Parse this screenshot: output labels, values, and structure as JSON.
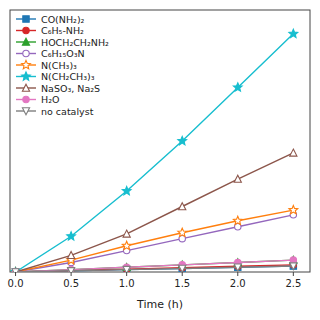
{
  "chart_data": {
    "type": "line",
    "xlabel": "Time (h)",
    "x": [
      0,
      0.5,
      1.0,
      1.5,
      2.0,
      2.5
    ],
    "xlim": [
      -0.05,
      2.65
    ],
    "ylim": [
      0,
      220
    ],
    "xticks": [
      {
        "value": 0,
        "label": "0.0"
      },
      0.5,
      {
        "value": 1.0,
        "label": "1.0"
      },
      1.5,
      {
        "value": 2.0,
        "label": "2.0"
      },
      2.5
    ],
    "tick_labels": "x",
    "legend": "upper-left",
    "series": [
      {
        "name": "CO(NH₂)₂",
        "marker": "square",
        "line_style": "solid",
        "values": [
          0,
          1,
          2,
          3,
          4,
          5
        ]
      },
      {
        "name": "C₆H₅-NH₂",
        "marker": "circle",
        "line_style": "solid",
        "values": [
          0,
          1.2,
          2.4,
          3.6,
          4.8,
          6
        ]
      },
      {
        "name": "HOCH₂CH₂NH₂",
        "marker": "triangle",
        "line_style": "solid",
        "values": [
          0,
          2,
          4,
          6,
          8,
          10
        ]
      },
      {
        "name": "C₆H₁₅O₃N",
        "marker": "circle-open",
        "line_style": "solid",
        "values": [
          0,
          8,
          18,
          28,
          38,
          48
        ]
      },
      {
        "name": "N(CH₃)₃",
        "marker": "star-open",
        "line_style": "solid",
        "values": [
          0,
          10,
          22,
          33,
          43,
          52
        ]
      },
      {
        "name": "N(CH₂CH₃)₃",
        "marker": "star",
        "line_style": "solid",
        "values": [
          0,
          30,
          68,
          110,
          155,
          200
        ]
      },
      {
        "name": "NaSO₃, Na₂S",
        "marker": "triangle-open",
        "line_style": "solid",
        "values": [
          0,
          14,
          32,
          55,
          78,
          100
        ]
      },
      {
        "name": "H₂O",
        "marker": "circle",
        "line_style": "solid",
        "values": [
          0,
          2,
          4,
          6,
          8,
          10
        ]
      },
      {
        "name": "no catalyst",
        "marker": "triangle-down-open",
        "line_style": "solid",
        "values": [
          0,
          1,
          2,
          3,
          4,
          5
        ]
      }
    ]
  }
}
